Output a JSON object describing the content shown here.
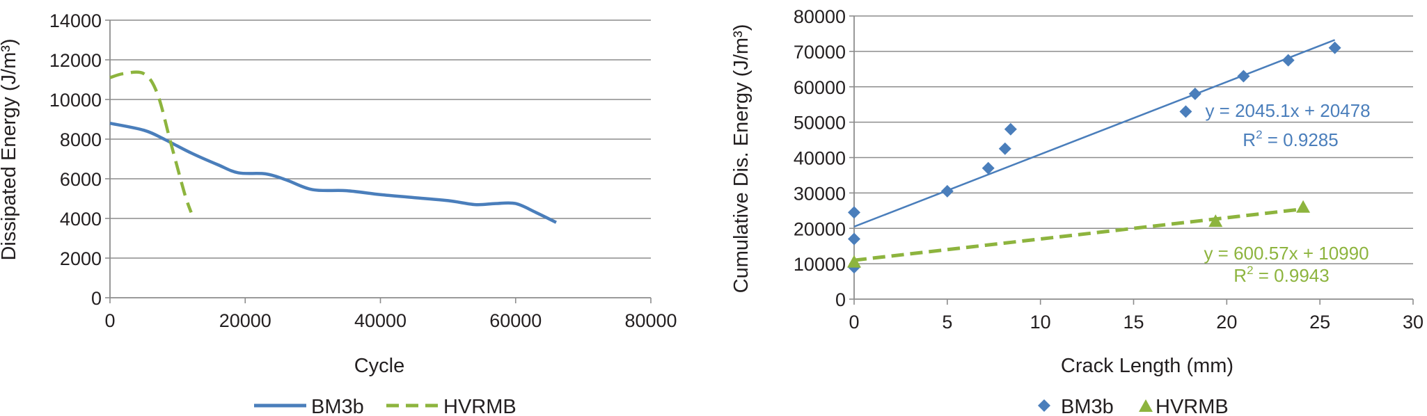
{
  "chart_data": [
    {
      "type": "line",
      "xlabel": "Cycle",
      "ylabel": "Dissipated Energy (J/m³)",
      "xlim": [
        0,
        80000
      ],
      "ylim": [
        0,
        14000
      ],
      "x_ticks": [
        "0",
        "20000",
        "40000",
        "60000",
        "80000"
      ],
      "y_ticks": [
        "0",
        "2000",
        "4000",
        "6000",
        "8000",
        "10000",
        "12000",
        "14000"
      ],
      "grid": "horizontal",
      "legend_position": "bottom",
      "series": [
        {
          "name": "BM3b",
          "color": "#4a7ebb",
          "dash": "solid",
          "x": [
            0,
            5000,
            8000,
            12000,
            16000,
            19000,
            23000,
            26000,
            30000,
            35000,
            40000,
            45000,
            50000,
            54000,
            57000,
            60000,
            63000,
            66000
          ],
          "y": [
            8800,
            8450,
            8000,
            7300,
            6700,
            6300,
            6250,
            5950,
            5450,
            5400,
            5200,
            5050,
            4900,
            4700,
            4750,
            4750,
            4300,
            3800
          ]
        },
        {
          "name": "HVRMB",
          "color": "#8db43e",
          "dash": "dashed",
          "x": [
            0,
            2000,
            5000,
            7000,
            9000,
            11000,
            12000
          ],
          "y": [
            11100,
            11300,
            11300,
            10300,
            7800,
            5300,
            4300
          ]
        }
      ]
    },
    {
      "type": "scatter",
      "xlabel": "Crack Length (mm)",
      "ylabel": "Cumulative Dis. Energy (J/m³)",
      "xlim": [
        0,
        30
      ],
      "ylim": [
        0,
        80000
      ],
      "x_ticks": [
        "0",
        "5",
        "10",
        "15",
        "20",
        "25",
        "30"
      ],
      "y_ticks": [
        "0",
        "10000",
        "20000",
        "30000",
        "40000",
        "50000",
        "60000",
        "70000",
        "80000"
      ],
      "grid": "horizontal",
      "legend_position": "bottom",
      "series": [
        {
          "name": "BM3b",
          "color": "#4a7ebb",
          "marker": "diamond",
          "x": [
            0,
            0,
            0,
            5,
            7.2,
            8.1,
            8.4,
            17.8,
            18.3,
            20.9,
            23.3,
            25.8
          ],
          "y": [
            9000,
            17000,
            24500,
            30500,
            37000,
            42500,
            48000,
            53000,
            58000,
            63000,
            67500,
            71000
          ],
          "trendline": {
            "slope": 2045.1,
            "intercept": 20478,
            "x_range": [
              0,
              25.8
            ],
            "dash": "solid",
            "equation": "y = 2045.1x + 20478",
            "r2_prefix": "R",
            "r2_sup": "2",
            "r2_value": " = 0.9285"
          }
        },
        {
          "name": "HVRMB",
          "color": "#8db43e",
          "marker": "triangle",
          "x": [
            0,
            19.4,
            24.1
          ],
          "y": [
            10500,
            22000,
            26000
          ],
          "trendline": {
            "slope": 600.57,
            "intercept": 10990,
            "x_range": [
              0,
              24.1
            ],
            "dash": "dashed",
            "equation": "y = 600.57x + 10990",
            "r2_prefix": "R",
            "r2_sup": "2",
            "r2_value": " = 0.9943"
          }
        }
      ]
    }
  ]
}
